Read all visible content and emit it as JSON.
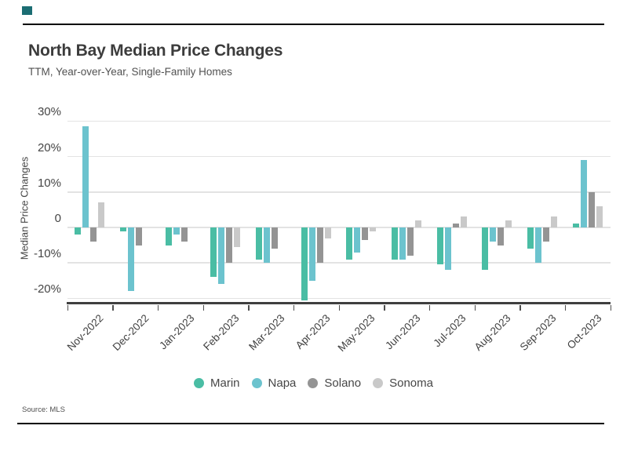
{
  "branding": {
    "logo_color": "#1b6d73"
  },
  "header": {
    "title": "North Bay Median Price Changes",
    "subtitle": "TTM, Year-over-Year, Single-Family Homes"
  },
  "footer": {
    "source": "Source: MLS"
  },
  "chart_data": {
    "type": "bar",
    "title": "North Bay Median Price Changes",
    "subtitle": "TTM, Year-over-Year, Single-Family Homes",
    "xlabel": "",
    "ylabel": "Median Price Changes",
    "ylim": [
      -22,
      32
    ],
    "grid": true,
    "legend_position": "bottom",
    "value_unit": "percent",
    "categories": [
      "Nov-2022",
      "Dec-2022",
      "Jan-2023",
      "Feb-2023",
      "Mar-2023",
      "Apr-2023",
      "May-2023",
      "Jun-2023",
      "Jul-2023",
      "Aug-2023",
      "Sep-2023",
      "Oct-2023"
    ],
    "yticks": [
      {
        "label": "30%",
        "value": 30
      },
      {
        "label": "20%",
        "value": 20
      },
      {
        "label": "10%",
        "value": 10
      },
      {
        "label": "0",
        "value": 0
      },
      {
        "label": "-10%",
        "value": -10
      },
      {
        "label": "-20%",
        "value": -20
      }
    ],
    "series": [
      {
        "name": "Marin",
        "color": "#4abda4",
        "values": [
          -2,
          -1,
          -5,
          -14,
          -9,
          -20.5,
          -9,
          -9,
          -10.5,
          -12,
          -6,
          1
        ]
      },
      {
        "name": "Napa",
        "color": "#6cc3ce",
        "values": [
          28.5,
          -18,
          -2,
          -16,
          -10,
          -15,
          -7,
          -9,
          -12,
          -4,
          -10,
          19
        ]
      },
      {
        "name": "Solano",
        "color": "#949494",
        "values": [
          -4,
          -5,
          -4,
          -10,
          -6,
          -10,
          -3.5,
          -8,
          1,
          -5,
          -4,
          10
        ]
      },
      {
        "name": "Sonoma",
        "color": "#c9c9c9",
        "values": [
          7,
          0,
          0,
          -5.5,
          0,
          -3,
          -1,
          2,
          3,
          2,
          3,
          6
        ]
      }
    ]
  }
}
